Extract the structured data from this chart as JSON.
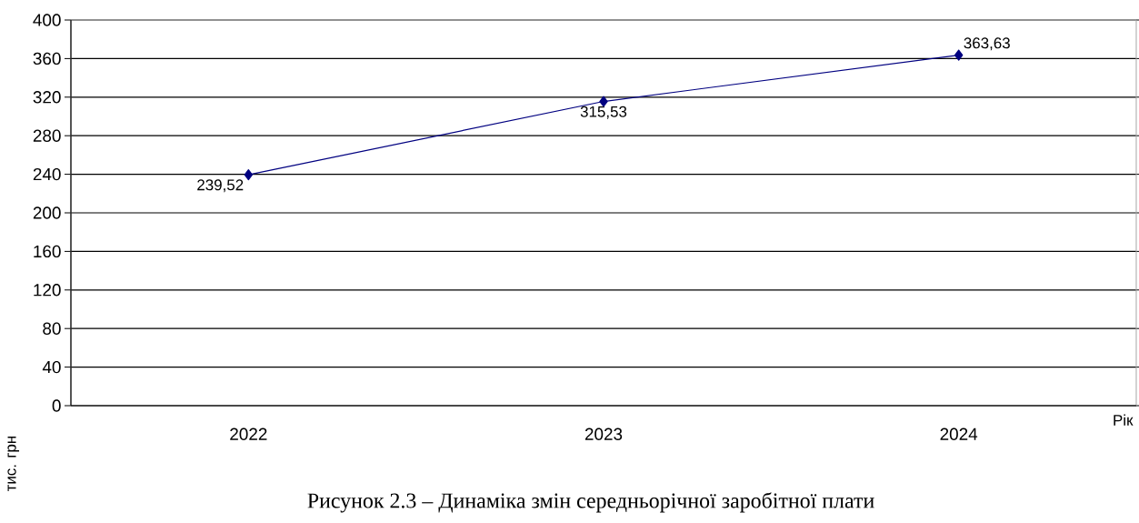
{
  "chart_data": {
    "type": "line",
    "categories": [
      "2022",
      "2023",
      "2024"
    ],
    "series": [
      {
        "color": "#000080",
        "values": [
          239.52,
          315.53,
          363.63
        ],
        "value_labels": [
          "239,52",
          "315,53",
          "363,63"
        ]
      }
    ],
    "ylim": [
      0,
      400
    ],
    "yticks": [
      0,
      40,
      80,
      120,
      160,
      200,
      240,
      280,
      320,
      360,
      400
    ],
    "xlabel": "Рік",
    "ylabel": "тис. грн",
    "grid": "y",
    "marker": "diamond",
    "line_style": "solid",
    "annotations": [
      "Рисунок 2.3 – Динаміка змін середньорічної заробітної плати"
    ]
  }
}
